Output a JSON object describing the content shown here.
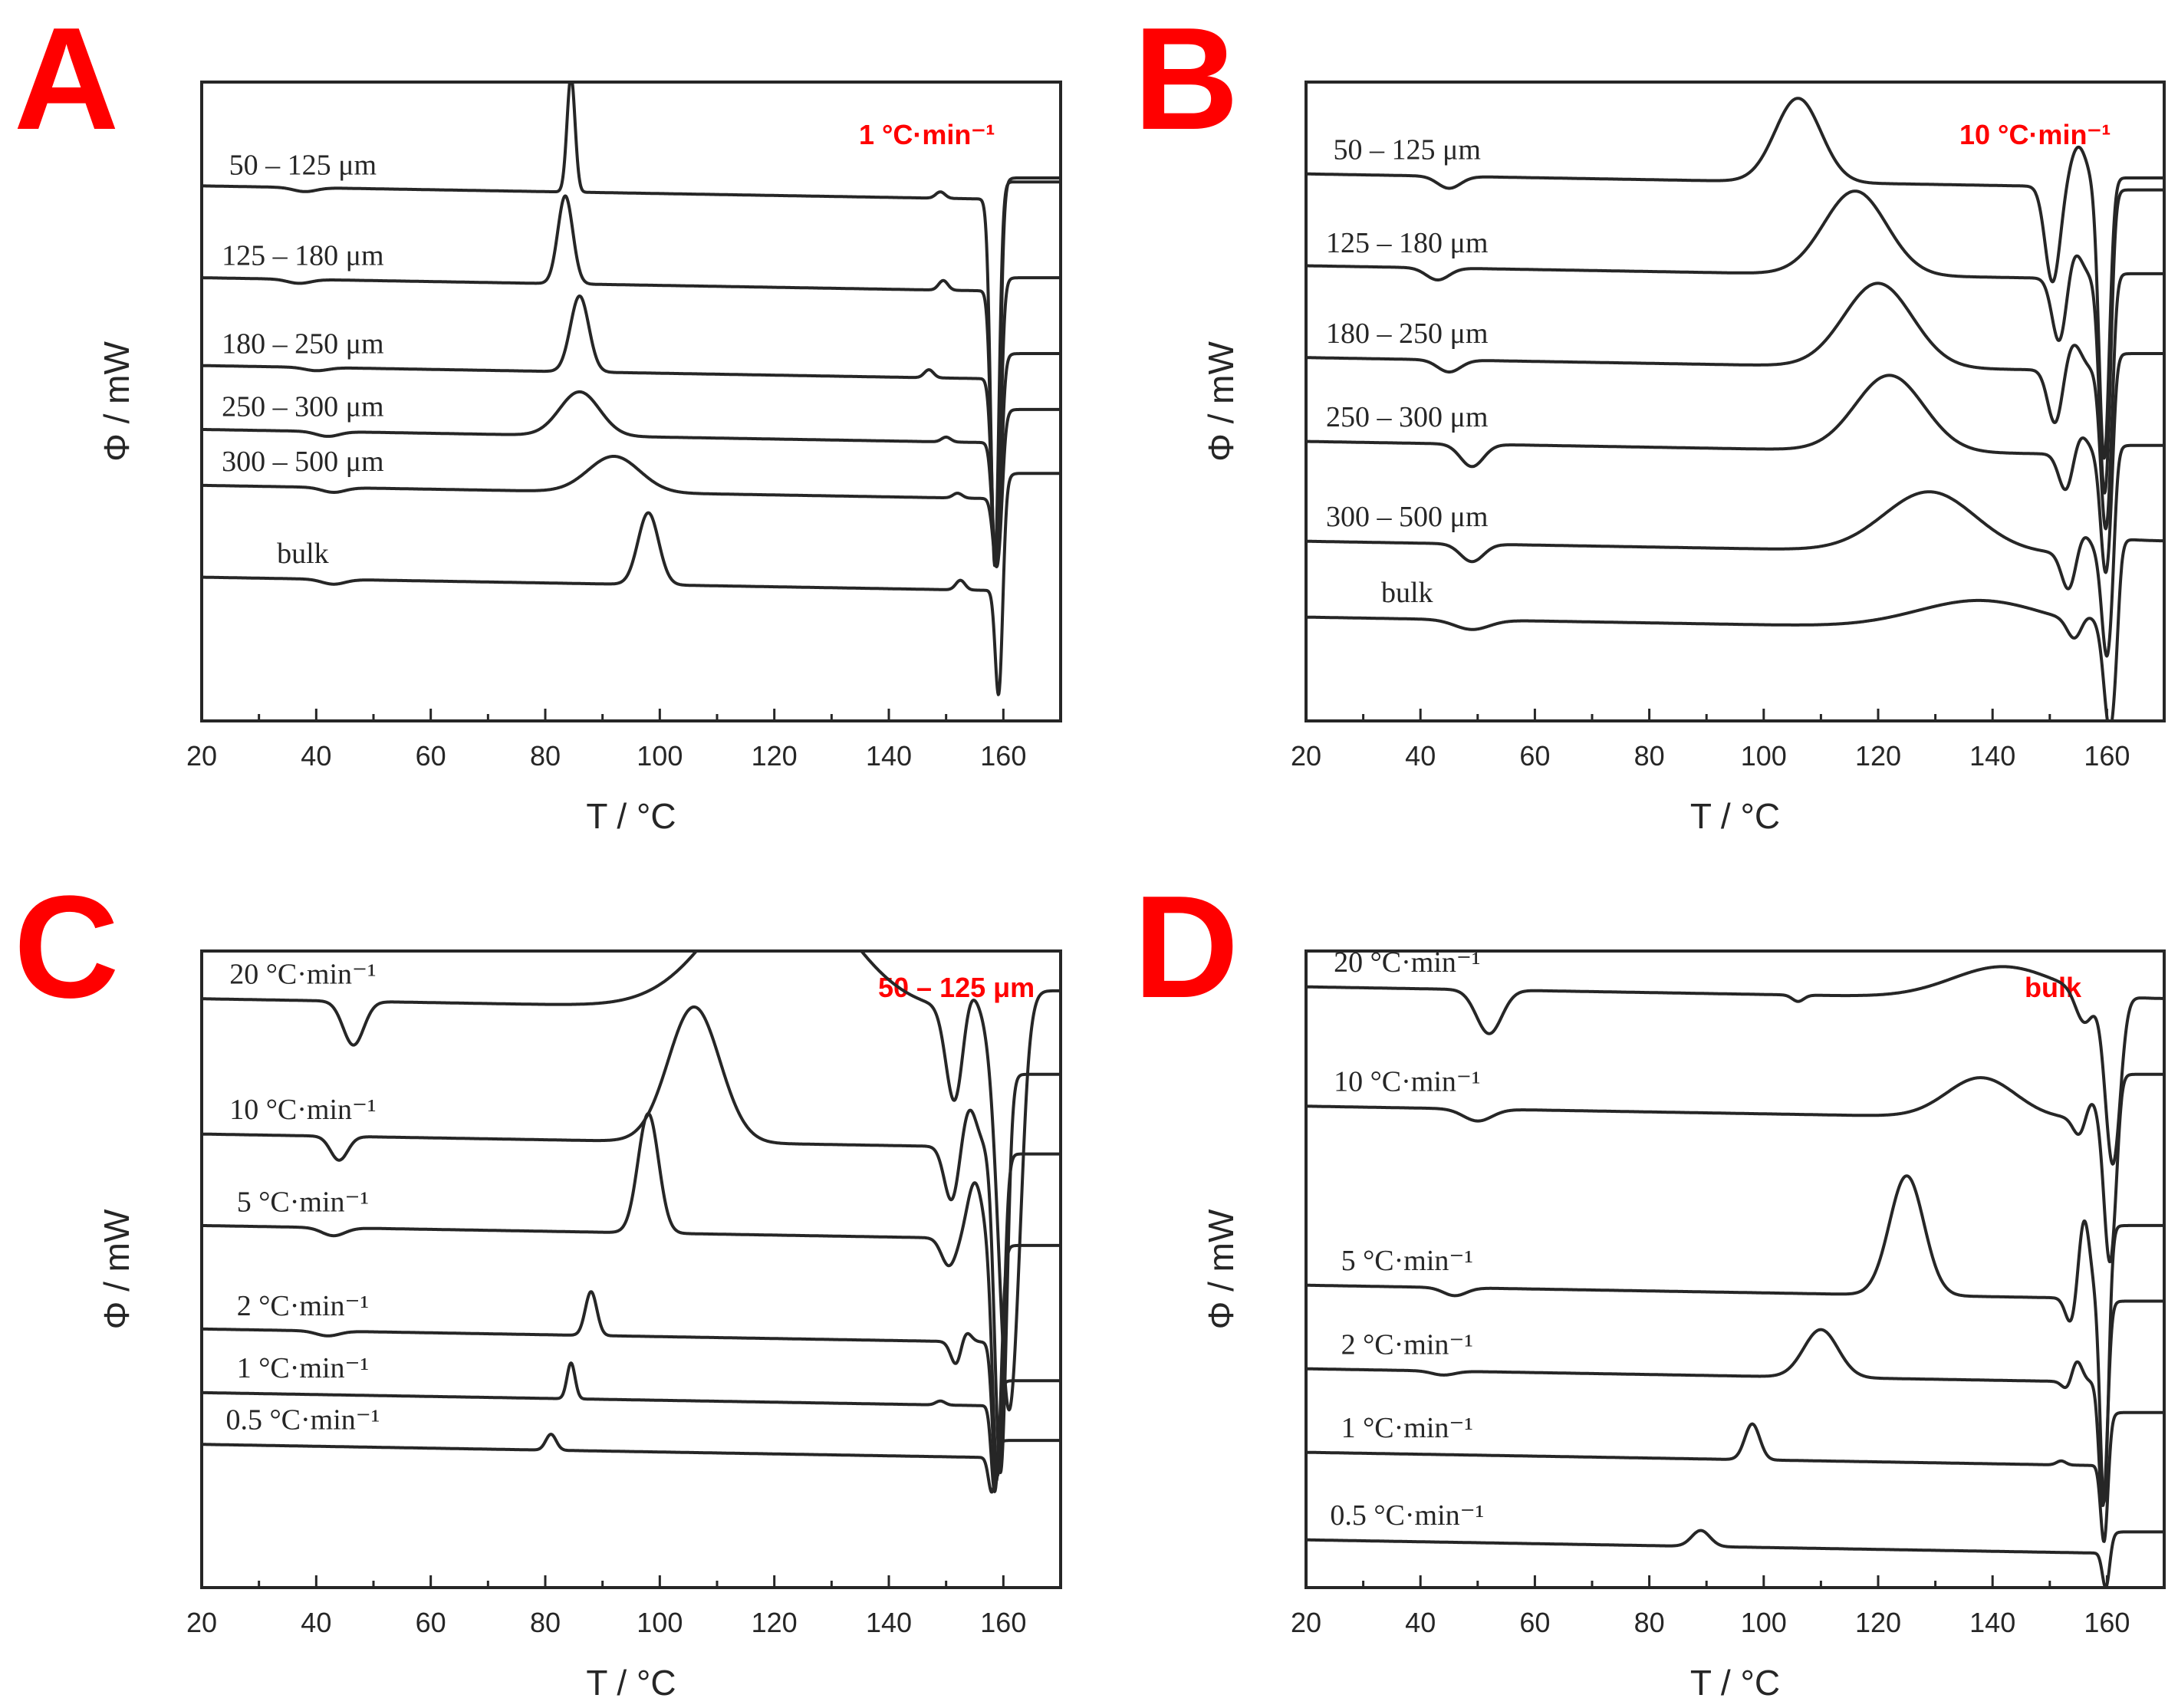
{
  "chart_data": [
    {
      "panel": "A",
      "type": "line",
      "annotation": "1 °C·min⁻¹",
      "xlabel": "T   /   °C",
      "ylabel": "Φ   /   mW",
      "xlim": [
        20,
        170
      ],
      "xticks": [
        20,
        40,
        60,
        80,
        100,
        120,
        140,
        160
      ],
      "series": [
        {
          "name": "50 – 125 μm",
          "baseline": 5.1,
          "dips": [
            [
              38,
              -0.05,
              2
            ]
          ],
          "peaks": [
            [
              84.5,
              1.45,
              0.7
            ],
            [
              149,
              0.08,
              0.8
            ]
          ],
          "melt": [
            158.5,
            -4.6,
            0.7
          ],
          "after": 5.15
        },
        {
          "name": "125 – 180 μm",
          "baseline": 3.95,
          "dips": [
            [
              37,
              -0.05,
              2
            ]
          ],
          "peaks": [
            [
              83.5,
              1.1,
              1.3
            ],
            [
              149.5,
              0.12,
              0.8
            ]
          ],
          "melt": [
            158.6,
            -3.5,
            0.7
          ],
          "after": 5.2
        },
        {
          "name": "180 – 250 μm",
          "baseline": 2.85,
          "dips": [
            [
              40,
              -0.04,
              2
            ]
          ],
          "peaks": [
            [
              86,
              0.95,
              1.6
            ],
            [
              147,
              0.1,
              0.8
            ]
          ],
          "melt": [
            158.7,
            -2.4,
            0.7
          ],
          "after": 3.95
        },
        {
          "name": "250 – 300 μm",
          "baseline": 2.05,
          "dips": [
            [
              42,
              -0.06,
              2
            ]
          ],
          "peaks": [
            [
              86,
              0.55,
              3.5
            ],
            [
              150,
              0.06,
              0.8
            ]
          ],
          "melt": [
            158.8,
            -1.6,
            0.7
          ],
          "after": 3.0
        },
        {
          "name": "300 – 500 μm",
          "baseline": 1.35,
          "dips": [
            [
              43,
              -0.06,
              2
            ]
          ],
          "peaks": [
            [
              92,
              0.45,
              4.5
            ],
            [
              152,
              0.06,
              0.8
            ]
          ],
          "melt": [
            158.9,
            -0.9,
            0.7
          ],
          "after": 2.3
        },
        {
          "name": "bulk",
          "baseline": 0.2,
          "dips": [
            [
              43,
              -0.06,
              2
            ]
          ],
          "peaks": [
            [
              98,
              0.9,
              1.8
            ],
            [
              152.5,
              0.12,
              0.8
            ]
          ],
          "melt": [
            159.2,
            -1.4,
            0.6
          ],
          "after": 1.5
        }
      ]
    },
    {
      "panel": "B",
      "type": "line",
      "annotation": "10 °C·min⁻¹",
      "xlabel": "T   /   °C",
      "ylabel": "Φ   /   mW",
      "xlim": [
        20,
        170
      ],
      "xticks": [
        20,
        40,
        60,
        80,
        100,
        120,
        140,
        160
      ],
      "series": [
        {
          "name": "50 – 125 μm",
          "baseline": 5.25,
          "dips": [
            [
              45,
              -0.15,
              2
            ]
          ],
          "peaks": [
            [
              106,
              1.05,
              4
            ],
            [
              155,
              0.5,
              1.5
            ]
          ],
          "melt": [
            150.5,
            -1.2,
            1.3
          ],
          "melt2": [
            159.5,
            -3.4,
            0.9
          ],
          "after": 5.2
        },
        {
          "name": "125 – 180 μm",
          "baseline": 4.1,
          "dips": [
            [
              43,
              -0.15,
              2
            ]
          ],
          "peaks": [
            [
              116,
              1.05,
              5.5
            ],
            [
              154,
              0.4,
              1.5
            ]
          ],
          "melt": [
            151.8,
            -0.9,
            1.3
          ],
          "melt2": [
            159.6,
            -2.7,
            0.9
          ],
          "after": 5.05
        },
        {
          "name": "180 – 250 μm",
          "baseline": 2.95,
          "dips": [
            [
              45,
              -0.15,
              2
            ]
          ],
          "peaks": [
            [
              120,
              1.05,
              6
            ],
            [
              154,
              0.35,
              1.5
            ]
          ],
          "melt": [
            151,
            -0.7,
            1.3
          ],
          "melt2": [
            159.8,
            -2.0,
            0.9
          ],
          "after": 4.0
        },
        {
          "name": "250 – 300 μm",
          "baseline": 1.9,
          "dips": [
            [
              49,
              -0.28,
              2
            ]
          ],
          "peaks": [
            [
              122,
              0.95,
              6
            ],
            [
              155,
              0.3,
              1.5
            ]
          ],
          "melt": [
            153,
            -0.55,
            1.3
          ],
          "melt2": [
            159.8,
            -1.5,
            0.9
          ],
          "after": 3.0
        },
        {
          "name": "300 – 500 μm",
          "baseline": 0.65,
          "dips": [
            [
              49,
              -0.22,
              2
            ]
          ],
          "peaks": [
            [
              129,
              0.75,
              8
            ],
            [
              155.5,
              0.3,
              1.5
            ]
          ],
          "melt": [
            153.5,
            -0.55,
            1.3
          ],
          "melt2": [
            160,
            -1.3,
            0.9
          ],
          "after": 1.85
        },
        {
          "name": "bulk",
          "baseline": -0.3,
          "dips": [
            [
              49,
              -0.12,
              3
            ]
          ],
          "peaks": [
            [
              138,
              0.35,
              11
            ],
            [
              156,
              0.15,
              1.5
            ]
          ],
          "melt": [
            154.5,
            -0.3,
            1.3
          ],
          "melt2": [
            160.5,
            -1.3,
            1.0
          ],
          "after": 0.65
        }
      ]
    },
    {
      "panel": "C",
      "type": "line",
      "annotation": "50 – 125 μm",
      "xlabel": "T   /   °C",
      "ylabel": "Φ   /   mW",
      "xlim": [
        20,
        170
      ],
      "xticks": [
        20,
        40,
        60,
        80,
        100,
        120,
        140,
        160
      ],
      "series": [
        {
          "name": "20 °C·min⁻¹",
          "baseline": 5.8,
          "dips": [
            [
              46.5,
              -0.55,
              1.8
            ]
          ],
          "peaks": [
            [
              121,
              1.7,
              11
            ],
            [
              154,
              0.3,
              1.3
            ]
          ],
          "melt": [
            151.5,
            -1.2,
            1.5
          ],
          "melt2": [
            161,
            -5.0,
            1.8
          ],
          "after": 5.9
        },
        {
          "name": "10 °C·min⁻¹",
          "baseline": 4.1,
          "dips": [
            [
              44,
              -0.3,
              1.5
            ]
          ],
          "peaks": [
            [
              106,
              1.7,
              4.5
            ],
            [
              154,
              0.5,
              1.3
            ]
          ],
          "melt": [
            151,
            -0.7,
            1.3
          ],
          "melt2": [
            159.5,
            -4.1,
            1.0
          ],
          "after": 4.85
        },
        {
          "name": "5 °C·min⁻¹",
          "baseline": 2.95,
          "dips": [
            [
              43,
              -0.1,
              2
            ]
          ],
          "peaks": [
            [
              98,
              1.5,
              1.8
            ],
            [
              155,
              0.7,
              1.3
            ]
          ],
          "melt": [
            150.5,
            -0.35,
            1.3
          ],
          "melt2": [
            159,
            -3.0,
            0.9
          ],
          "after": 3.85
        },
        {
          "name": "2 °C·min⁻¹",
          "baseline": 1.65,
          "dips": [
            [
              42,
              -0.06,
              2
            ]
          ],
          "peaks": [
            [
              88,
              0.55,
              1.0
            ],
            [
              153,
              0.25,
              1.0
            ]
          ],
          "melt": [
            152,
            -0.4,
            1.0
          ],
          "melt2": [
            158.8,
            -1.8,
            0.7
          ],
          "after": 2.7
        },
        {
          "name": "1 °C·min⁻¹",
          "baseline": 0.85,
          "dips": [],
          "peaks": [
            [
              84.5,
              0.45,
              0.7
            ],
            [
              149,
              0.05,
              0.8
            ]
          ],
          "melt": [
            158.5,
            -1.1,
            0.6
          ],
          "after": 1.0
        },
        {
          "name": "0.5 °C·min⁻¹",
          "baseline": 0.2,
          "dips": [],
          "peaks": [
            [
              81,
              0.2,
              0.9
            ]
          ],
          "melt": [
            158,
            -0.45,
            0.6
          ],
          "after": 0.25
        }
      ]
    },
    {
      "panel": "D",
      "type": "line",
      "annotation": "bulk",
      "xlabel": "T   /   °C",
      "ylabel": "Φ   /   mW",
      "xlim": [
        20,
        170
      ],
      "xticks": [
        20,
        40,
        60,
        80,
        100,
        120,
        140,
        160
      ],
      "series": [
        {
          "name": "20 °C·min⁻¹",
          "baseline": 5.95,
          "dips": [
            [
              52,
              -0.55,
              2.2
            ],
            [
              106,
              -0.08,
              1
            ]
          ],
          "peaks": [
            [
              142,
              0.4,
              9
            ]
          ],
          "melt": [
            156,
            -0.4,
            1.5
          ],
          "melt2": [
            161,
            -2.1,
            1.3
          ],
          "after": 5.8
        },
        {
          "name": "10 °C·min⁻¹",
          "baseline": 4.45,
          "dips": [
            [
              50,
              -0.15,
              2.5
            ]
          ],
          "peaks": [
            [
              138,
              0.5,
              6
            ],
            [
              157,
              0.3,
              1.2
            ]
          ],
          "melt": [
            155.5,
            -0.3,
            1.2
          ],
          "melt2": [
            160.5,
            -1.8,
            1.0
          ],
          "after": 4.85
        },
        {
          "name": "5 °C·min⁻¹",
          "baseline": 2.2,
          "dips": [
            [
              46,
              -0.1,
              2
            ]
          ],
          "peaks": [
            [
              125,
              1.5,
              3
            ],
            [
              156,
              1.0,
              1.0
            ]
          ],
          "melt": [
            153.8,
            -0.35,
            1.0
          ],
          "melt2": [
            159.5,
            -2.6,
            0.7
          ],
          "after": 2.95
        },
        {
          "name": "2 °C·min⁻¹",
          "baseline": 1.15,
          "dips": [
            [
              44,
              -0.05,
              2
            ]
          ],
          "peaks": [
            [
              110,
              0.6,
              3
            ],
            [
              154.5,
              0.35,
              1.0
            ]
          ],
          "melt": [
            153.5,
            -0.2,
            1.0
          ],
          "melt2": [
            159.3,
            -1.6,
            0.7
          ],
          "after": 2.0
        },
        {
          "name": "1 °C·min⁻¹",
          "baseline": 0.1,
          "dips": [],
          "peaks": [
            [
              98,
              0.45,
              1.3
            ],
            [
              152,
              0.05,
              0.8
            ]
          ],
          "melt": [
            159.5,
            -1.0,
            0.6
          ],
          "after": 0.6
        },
        {
          "name": "0.5 °C·min⁻¹",
          "baseline": -1.0,
          "dips": [],
          "peaks": [
            [
              89,
              0.2,
              1.6
            ]
          ],
          "melt": [
            159.8,
            -0.45,
            0.6
          ],
          "after": -0.9
        }
      ]
    }
  ]
}
